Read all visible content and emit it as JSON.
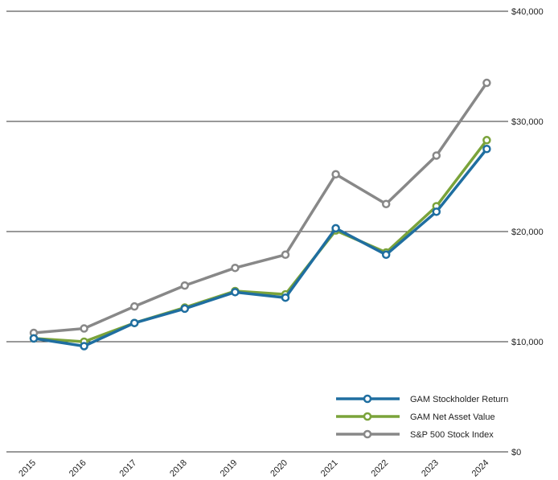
{
  "chart_data": {
    "type": "line",
    "x": [
      "2015",
      "2016",
      "2017",
      "2018",
      "2019",
      "2020",
      "2021",
      "2022",
      "2023",
      "2024"
    ],
    "series": [
      {
        "name": "GAM Stockholder Return",
        "color": "#1f6ea0",
        "values": [
          10300,
          9600,
          11700,
          13000,
          14500,
          14000,
          20300,
          17900,
          21800,
          27500
        ]
      },
      {
        "name": "GAM Net Asset Value",
        "color": "#7aa33a",
        "values": [
          10300,
          10000,
          11700,
          13100,
          14600,
          14300,
          20100,
          18100,
          22300,
          28300
        ]
      },
      {
        "name": "S&P 500 Stock Index",
        "color": "#888888",
        "values": [
          10800,
          11200,
          13200,
          15100,
          16700,
          17900,
          25200,
          22500,
          26900,
          33500
        ]
      }
    ],
    "ylim": [
      0,
      40000
    ],
    "yticks": [
      0,
      10000,
      20000,
      30000,
      40000
    ],
    "ytick_labels": [
      "$0",
      "$10,000",
      "$20,000",
      "$30,000",
      "$40,000"
    ],
    "grid": true,
    "y_axis_position": "right",
    "legend_position": "bottom-right",
    "title": "",
    "xlabel": "",
    "ylabel": ""
  }
}
